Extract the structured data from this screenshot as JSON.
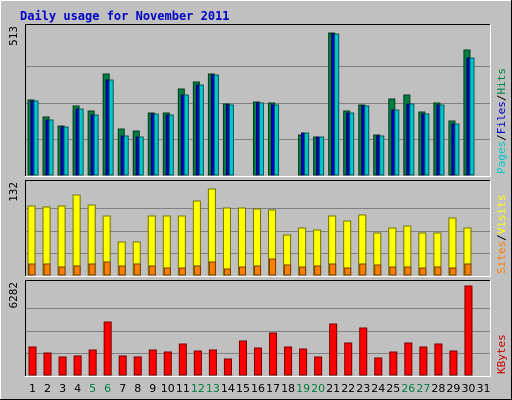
{
  "chart_data": {
    "type": "bar",
    "title": "Daily usage for November 2011",
    "days": [
      "1",
      "2",
      "3",
      "4",
      "5",
      "6",
      "7",
      "8",
      "9",
      "10",
      "11",
      "12",
      "13",
      "14",
      "15",
      "16",
      "17",
      "18",
      "19",
      "20",
      "21",
      "22",
      "23",
      "24",
      "25",
      "26",
      "27",
      "28",
      "29",
      "30",
      "31"
    ],
    "weekend_days": [
      "5",
      "6",
      "12",
      "13",
      "19",
      "20",
      "26",
      "27"
    ],
    "panels": [
      {
        "id": "top",
        "ymax_label": "513",
        "ymax": 513,
        "legend": [
          "Pages",
          "/",
          "Files",
          "/",
          "Hits"
        ],
        "legend_colors": [
          "#00c8c8",
          "#000000",
          "#0000c8",
          "#000000",
          "#008040"
        ],
        "series": [
          {
            "name": "Hits",
            "color": "#008040",
            "values": [
              266,
              206,
              172,
              245,
              227,
              357,
              164,
              157,
              219,
              219,
              305,
              329,
              357,
              252,
              0,
              257,
              253,
              0,
              143,
              135,
              501,
              228,
              249,
              143,
              270,
              284,
              222,
              253,
              192,
              444,
              0
            ]
          },
          {
            "name": "Files",
            "color": "#0000c8",
            "values": [
              263,
              195,
              170,
              232,
              214,
              336,
              137,
              134,
              215,
              214,
              282,
              319,
              355,
              248,
              0,
              256,
              249,
              0,
              148,
              133,
              498,
              220,
              245,
              138,
              229,
              252,
              215,
              249,
              182,
              413,
              0
            ]
          },
          {
            "name": "Pages",
            "color": "#00c8c8",
            "values": [
              263,
              195,
              170,
              232,
              214,
              336,
              137,
              134,
              215,
              214,
              282,
              319,
              355,
              248,
              0,
              256,
              249,
              0,
              148,
              133,
              498,
              220,
              245,
              138,
              229,
              252,
              215,
              249,
              182,
              413,
              0
            ]
          }
        ]
      },
      {
        "id": "middle",
        "ymax_label": "132",
        "ymax": 132,
        "legend": [
          "Sites",
          "/",
          "Visits"
        ],
        "legend_colors": [
          "#ff8000",
          "#000000",
          "#ffff00"
        ],
        "series": [
          {
            "name": "Visits",
            "color": "#ffff00",
            "values": [
              102,
              101,
              102,
              118,
              104,
              87,
              49,
              49,
              88,
              88,
              88,
              110,
              127,
              100,
              99,
              98,
              96,
              60,
              69,
              67,
              88,
              80,
              89,
              62,
              69,
              73,
              63,
              63,
              85,
              69,
              0
            ]
          },
          {
            "name": "Sites",
            "color": "#ff8000",
            "values": [
              17,
              17,
              12,
              13,
              16,
              19,
              13,
              16,
              13,
              10,
              11,
              13,
              20,
              9,
              12,
              14,
              23,
              15,
              12,
              14,
              16,
              10,
              16,
              15,
              12,
              12,
              11,
              12,
              11,
              16,
              0
            ]
          }
        ]
      },
      {
        "id": "bottom",
        "ymax_label": "6282",
        "ymax": 6282,
        "legend": [
          "KBytes"
        ],
        "legend_colors": [
          "#c80000"
        ],
        "series": [
          {
            "name": "KBytes",
            "color": "#ff0000",
            "values": [
              2010,
              1556,
              1273,
              1370,
              1763,
              3712,
              1351,
              1238,
              1768,
              1642,
              2203,
              1668,
              1753,
              1136,
              2433,
              1901,
              2956,
              1993,
              1822,
              1301,
              3612,
              2253,
              3347,
              1221,
              1597,
              2253,
              1972,
              2203,
              1712,
              6282,
              0
            ]
          }
        ]
      }
    ]
  }
}
